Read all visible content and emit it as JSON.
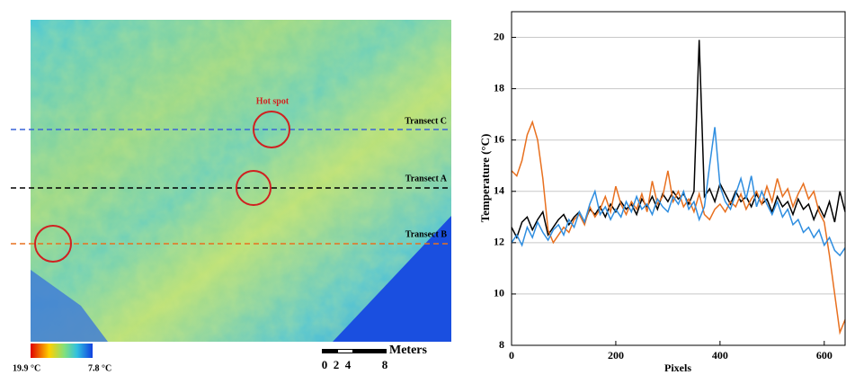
{
  "image_panel": {
    "hot_spot_label": "Hot spot",
    "transects": [
      "Transect C",
      "Transect A",
      "Transect B"
    ],
    "colorbar": {
      "max_label": "19.9 °C",
      "min_label": "7.8 °C"
    },
    "scale_bar": {
      "unit": "Meters",
      "ticks": [
        "0",
        "2",
        "4",
        "8"
      ]
    }
  },
  "chart_data": {
    "type": "line",
    "x_label": "Pixels",
    "y_label": "Temperature (°C)",
    "x": [
      0,
      10,
      20,
      30,
      40,
      50,
      60,
      70,
      80,
      90,
      100,
      110,
      120,
      130,
      140,
      150,
      160,
      170,
      180,
      190,
      200,
      210,
      220,
      230,
      240,
      250,
      260,
      270,
      280,
      290,
      300,
      310,
      320,
      330,
      340,
      350,
      360,
      370,
      380,
      390,
      400,
      410,
      420,
      430,
      440,
      450,
      460,
      470,
      480,
      490,
      500,
      510,
      520,
      530,
      540,
      550,
      560,
      570,
      580,
      590,
      600,
      610,
      620,
      630,
      640
    ],
    "series": [
      {
        "color": "#000000",
        "values": [
          12.6,
          12.2,
          12.8,
          13.0,
          12.5,
          12.9,
          13.2,
          12.3,
          12.6,
          12.9,
          13.1,
          12.7,
          13.0,
          13.2,
          12.8,
          13.3,
          13.1,
          13.4,
          13.0,
          13.5,
          13.2,
          13.6,
          13.3,
          13.5,
          13.1,
          13.7,
          13.4,
          13.8,
          13.3,
          13.9,
          13.6,
          14.0,
          13.7,
          13.9,
          13.5,
          14.0,
          19.9,
          13.8,
          14.1,
          13.6,
          14.3,
          13.9,
          13.5,
          14.0,
          13.6,
          13.8,
          13.4,
          13.9,
          13.5,
          13.7,
          13.2,
          13.8,
          13.4,
          13.6,
          13.1,
          13.7,
          13.3,
          13.5,
          12.9,
          13.4,
          13.0,
          13.6,
          12.8,
          14.0,
          13.2
        ]
      },
      {
        "color": "#e8701f",
        "values": [
          14.8,
          14.6,
          15.2,
          16.2,
          16.7,
          16.0,
          14.5,
          12.5,
          12.0,
          12.3,
          12.6,
          12.4,
          12.9,
          13.1,
          12.7,
          13.4,
          13.0,
          13.3,
          13.8,
          13.2,
          14.2,
          13.5,
          13.1,
          13.6,
          13.3,
          13.9,
          13.2,
          14.4,
          13.5,
          13.8,
          14.8,
          13.6,
          14.0,
          13.4,
          13.7,
          13.2,
          13.9,
          13.1,
          12.9,
          13.3,
          13.5,
          13.2,
          13.6,
          13.4,
          13.9,
          13.3,
          13.7,
          14.0,
          13.5,
          14.2,
          13.6,
          14.5,
          13.8,
          14.1,
          13.4,
          13.9,
          14.3,
          13.7,
          14.0,
          13.2,
          12.8,
          11.5,
          10.0,
          8.5,
          9.0
        ]
      },
      {
        "color": "#2f8ee0",
        "values": [
          12.0,
          12.3,
          11.9,
          12.6,
          12.2,
          12.8,
          12.4,
          12.1,
          12.5,
          12.7,
          12.3,
          12.9,
          12.6,
          13.2,
          12.8,
          13.5,
          14.0,
          13.1,
          13.4,
          12.9,
          13.3,
          13.0,
          13.6,
          13.2,
          13.8,
          13.3,
          13.5,
          13.1,
          13.7,
          13.4,
          13.2,
          13.8,
          13.5,
          14.0,
          13.3,
          13.6,
          12.9,
          13.4,
          15.0,
          16.5,
          14.2,
          13.6,
          13.3,
          13.9,
          14.5,
          13.7,
          14.6,
          13.4,
          14.0,
          13.5,
          13.1,
          13.6,
          13.0,
          13.3,
          12.7,
          12.9,
          12.4,
          12.6,
          12.2,
          12.5,
          11.9,
          12.2,
          11.7,
          11.5,
          11.8
        ]
      }
    ],
    "xlim": [
      0,
      640
    ],
    "xticks": [
      0,
      200,
      400,
      600
    ],
    "ylim": [
      8,
      21
    ],
    "yticks": [
      8,
      10,
      12,
      14,
      16,
      18,
      20
    ],
    "grid": true
  }
}
